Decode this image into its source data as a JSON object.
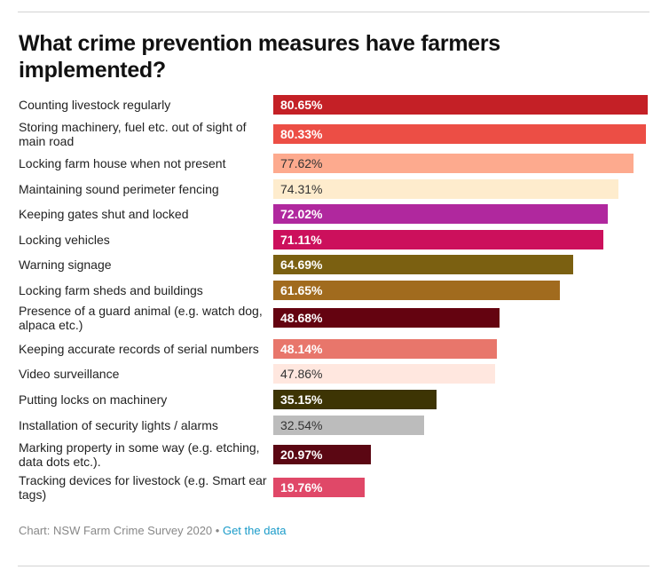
{
  "chart_data": {
    "type": "bar",
    "orientation": "horizontal",
    "title": "What crime prevention measures have farmers implemented?",
    "xlabel": "",
    "ylabel": "",
    "unit": "%",
    "grid": false,
    "legend": "none",
    "categories": [
      "Counting livestock regularly",
      "Storing machinery, fuel etc. out of sight of main road",
      "Locking farm house when not present",
      "Maintaining sound perimeter fencing",
      "Keeping gates shut and locked",
      "Locking vehicles",
      "Warning signage",
      "Locking farm sheds and buildings",
      "Presence of a guard animal (e.g. watch dog, alpaca etc.)",
      "Keeping accurate records of serial numbers",
      "Video surveillance",
      "Putting locks on machinery",
      "Installation of security lights / alarms",
      "Marking property in some way (e.g. etching, data dots etc.).",
      "Tracking devices for livestock (e.g. Smart ear tags)"
    ],
    "values": [
      80.65,
      80.33,
      77.62,
      74.31,
      72.02,
      71.11,
      64.69,
      61.65,
      48.68,
      48.14,
      47.86,
      35.15,
      32.54,
      20.97,
      19.76
    ],
    "value_labels": [
      "80.65%",
      "80.33%",
      "77.62%",
      "74.31%",
      "72.02%",
      "71.11%",
      "64.69%",
      "61.65%",
      "48.68%",
      "48.14%",
      "47.86%",
      "35.15%",
      "32.54%",
      "20.97%",
      "19.76%"
    ],
    "colors": [
      "#c42026",
      "#ec4e45",
      "#fdaa8e",
      "#feeccd",
      "#b0289e",
      "#cc105c",
      "#7b6011",
      "#a16b1e",
      "#640310",
      "#e8766b",
      "#ffe7df",
      "#3d3404",
      "#bcbcbc",
      "#5b0713",
      "#e04868"
    ],
    "label_style": [
      "dark",
      "dark",
      "light",
      "light",
      "dark",
      "dark",
      "dark",
      "dark",
      "dark",
      "dark",
      "light",
      "dark",
      "light",
      "dark",
      "dark"
    ]
  },
  "footer": {
    "source": "Chart: NSW Farm Crime Survey 2020",
    "separator": " • ",
    "link": "Get the data"
  }
}
